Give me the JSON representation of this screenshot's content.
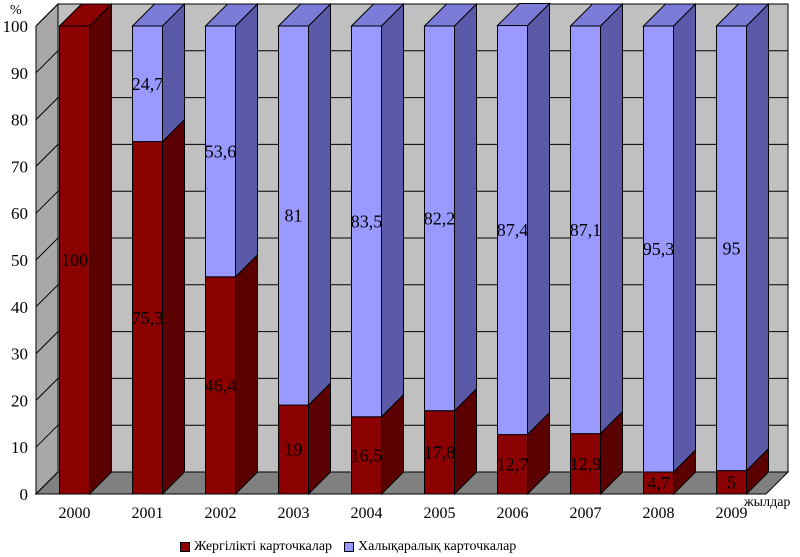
{
  "chart_data": {
    "type": "bar",
    "stacked": true,
    "three_d": true,
    "categories": [
      "2000",
      "2001",
      "2002",
      "2003",
      "2004",
      "2005",
      "2006",
      "2007",
      "2008",
      "2009"
    ],
    "series": [
      {
        "name": "Жергілікті карточкалар",
        "color": "#8b0000",
        "values": [
          100,
          75.3,
          46.4,
          19,
          16.5,
          17.8,
          12.7,
          12.9,
          4.7,
          5
        ],
        "labels": [
          "100",
          "75,3",
          "46,4",
          "19",
          "16,5",
          "17,8",
          "12,7",
          "12,9",
          "4,7",
          "5"
        ]
      },
      {
        "name": "Халықаралық карточкалар",
        "color": "#9999ff",
        "values": [
          0,
          24.7,
          53.6,
          81,
          83.5,
          82.2,
          87.4,
          87.1,
          95.3,
          95
        ],
        "labels": [
          "",
          "24,7",
          "53,6",
          "81",
          "83,5",
          "82,2",
          "87,4",
          "87,1",
          "95,3",
          "95"
        ]
      }
    ],
    "ylim": [
      0,
      100
    ],
    "yticks": [
      "0",
      "10",
      "20",
      "30",
      "40",
      "50",
      "60",
      "70",
      "80",
      "90",
      "100"
    ],
    "yunit": "%",
    "xunit": "жылдар",
    "grid": true,
    "legend_position": "bottom"
  },
  "legend": {
    "local": "Жергілікті карточкалар",
    "international": "Халықаралық карточкалар"
  }
}
